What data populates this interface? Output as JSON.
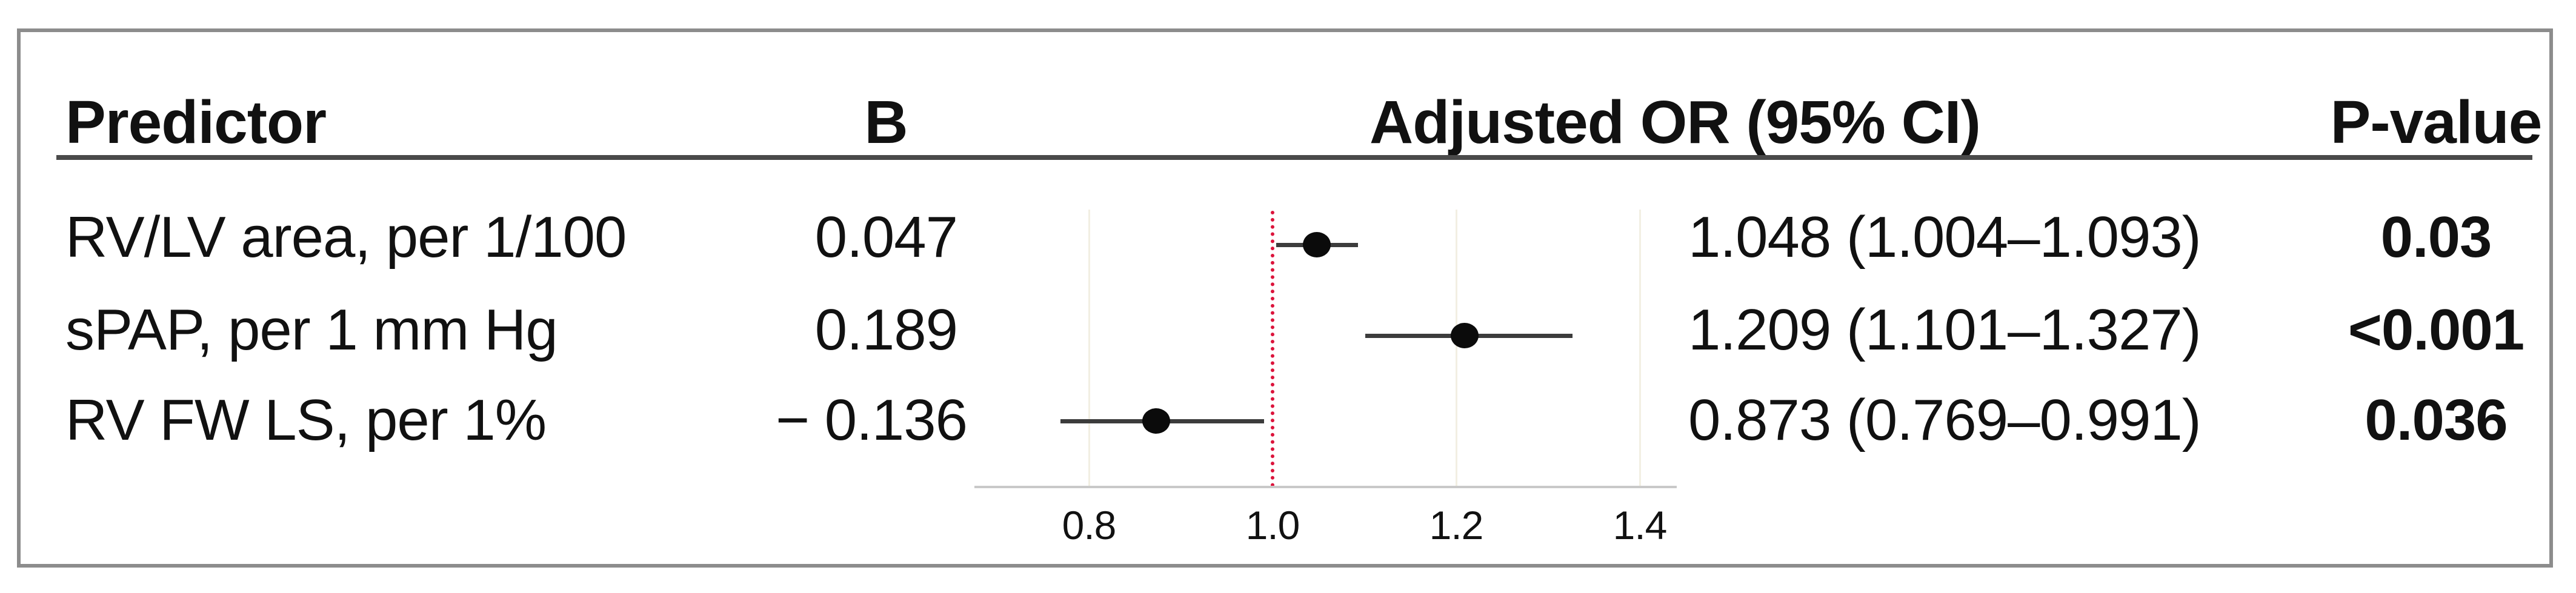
{
  "figure": {
    "columns": {
      "predictor": "Predictor",
      "b": "B",
      "adjusted_or": "Adjusted OR (95% CI)",
      "p_value": "P-value"
    }
  },
  "table": {
    "rows": [
      {
        "predictor": "RV/LV area, per 1/100",
        "b": "0.047",
        "or_ci": "1.048 (1.004–1.093)",
        "p": "0.03"
      },
      {
        "predictor": "sPAP, per 1 mm Hg",
        "b": "0.189",
        "or_ci": "1.209 (1.101–1.327)",
        "p": "<0.001"
      },
      {
        "predictor": "RV FW LS, per 1%",
        "b": "− 0.136",
        "or_ci": "0.873 (0.769–0.991)",
        "p": "0.036"
      }
    ]
  },
  "chart_data": {
    "type": "scatter",
    "subtype": "forest-plot",
    "orientation": "horizontal",
    "title": "Adjusted OR (95% CI)",
    "x_axis": {
      "ticks": [
        0.8,
        1.0,
        1.2,
        1.4
      ],
      "tick_labels": [
        "0.8",
        "1.0",
        "1.2",
        "1.4"
      ],
      "range": [
        0.675,
        1.44
      ],
      "reference_line": 1.0,
      "gridlines": [
        0.8,
        1.2,
        1.4
      ]
    },
    "series": [
      {
        "name": "Adjusted OR (95% CI)",
        "points": [
          {
            "label": "RV/LV area, per 1/100",
            "or": 1.048,
            "ci_low": 1.004,
            "ci_high": 1.093,
            "b": 0.047,
            "p": "0.03"
          },
          {
            "label": "sPAP, per 1 mm Hg",
            "or": 1.209,
            "ci_low": 1.101,
            "ci_high": 1.327,
            "b": 0.189,
            "p": "<0.001"
          },
          {
            "label": "RV FW LS, per 1%",
            "or": 0.873,
            "ci_low": 0.769,
            "ci_high": 0.991,
            "b": -0.136,
            "p": "0.036"
          }
        ]
      }
    ],
    "colors": {
      "marker": "#0b0b0b",
      "ci_line": "#3c3c3c",
      "reference_line": "#dc143c",
      "gridline": "#f2efe3",
      "axis_line": "#c9c9c9"
    },
    "legend": "none",
    "grid": "vertical-faint"
  }
}
